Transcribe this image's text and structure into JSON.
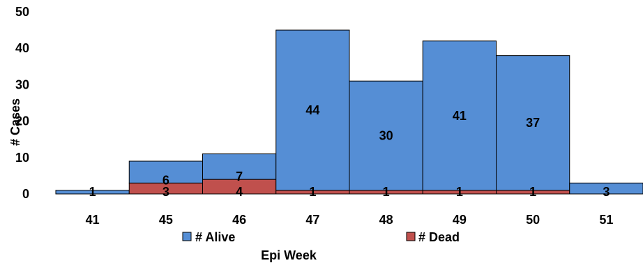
{
  "chart_data": {
    "type": "bar",
    "stacked": true,
    "categories": [
      "41",
      "45",
      "46",
      "47",
      "48",
      "49",
      "50",
      "51"
    ],
    "series": [
      {
        "name": "# Dead",
        "values": [
          0,
          3,
          4,
          1,
          1,
          1,
          1,
          0
        ],
        "color": "#c0504d"
      },
      {
        "name": "# Alive",
        "values": [
          1,
          6,
          7,
          44,
          30,
          41,
          37,
          3
        ],
        "color": "#558ed5"
      }
    ],
    "labels": {
      "dead": [
        "",
        "3",
        "4",
        "1",
        "1",
        "1",
        "1",
        ""
      ],
      "alive": [
        "1",
        "6",
        "7",
        "44",
        "30",
        "41",
        "37",
        "3"
      ]
    },
    "yticks": [
      "0",
      "10",
      "20",
      "30",
      "40",
      "50"
    ],
    "ylim": [
      0,
      50
    ],
    "xlabel": "Epi Week",
    "ylabel": "# Cases",
    "grid": false,
    "legend_position": "bottom"
  }
}
